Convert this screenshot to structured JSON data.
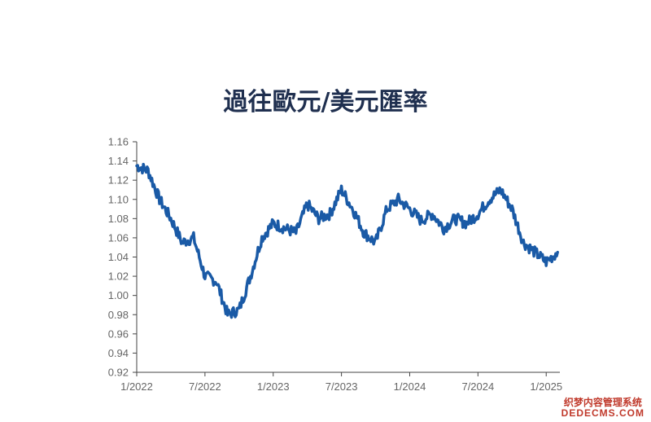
{
  "chart_data": {
    "type": "line",
    "title": "過往歐元/美元匯率",
    "xlabel": "",
    "ylabel": "",
    "ylim": [
      0.92,
      1.16
    ],
    "y_ticks": [
      0.92,
      0.94,
      0.96,
      0.98,
      1.0,
      1.02,
      1.04,
      1.06,
      1.08,
      1.1,
      1.12,
      1.14,
      1.16
    ],
    "x_ticks": [
      "1/2022",
      "7/2022",
      "1/2023",
      "7/2023",
      "1/2024",
      "7/2024",
      "1/2025"
    ],
    "grid": false,
    "line_color": "#1a5aa6",
    "series": [
      {
        "values_by_month": [
          [
            "2022-01",
            1.135
          ],
          [
            "2022-02",
            1.13
          ],
          [
            "2022-03",
            1.1
          ],
          [
            "2022-04",
            1.08
          ],
          [
            "2022-05",
            1.055
          ],
          [
            "2022-06",
            1.06
          ],
          [
            "2022-07",
            1.02
          ],
          [
            "2022-08",
            1.015
          ],
          [
            "2022-09",
            0.98
          ],
          [
            "2022-10",
            0.985
          ],
          [
            "2022-11",
            1.02
          ],
          [
            "2022-12",
            1.06
          ],
          [
            "2023-01",
            1.075
          ],
          [
            "2023-02",
            1.07
          ],
          [
            "2023-03",
            1.065
          ],
          [
            "2023-04",
            1.095
          ],
          [
            "2023-05",
            1.08
          ],
          [
            "2023-06",
            1.085
          ],
          [
            "2023-07",
            1.11
          ],
          [
            "2023-08",
            1.09
          ],
          [
            "2023-09",
            1.065
          ],
          [
            "2023-10",
            1.055
          ],
          [
            "2023-11",
            1.09
          ],
          [
            "2023-12",
            1.1
          ],
          [
            "2024-01",
            1.09
          ],
          [
            "2024-02",
            1.078
          ],
          [
            "2024-03",
            1.085
          ],
          [
            "2024-04",
            1.07
          ],
          [
            "2024-05",
            1.08
          ],
          [
            "2024-06",
            1.075
          ],
          [
            "2024-07",
            1.085
          ],
          [
            "2024-08",
            1.1
          ],
          [
            "2024-09",
            1.11
          ],
          [
            "2024-10",
            1.09
          ],
          [
            "2024-11",
            1.055
          ],
          [
            "2024-12",
            1.045
          ],
          [
            "2025-01",
            1.035
          ],
          [
            "2025-02",
            1.045
          ]
        ]
      }
    ]
  },
  "watermark": {
    "line1": "织梦内容管理系统",
    "line2": "DEDECMS.COM"
  }
}
